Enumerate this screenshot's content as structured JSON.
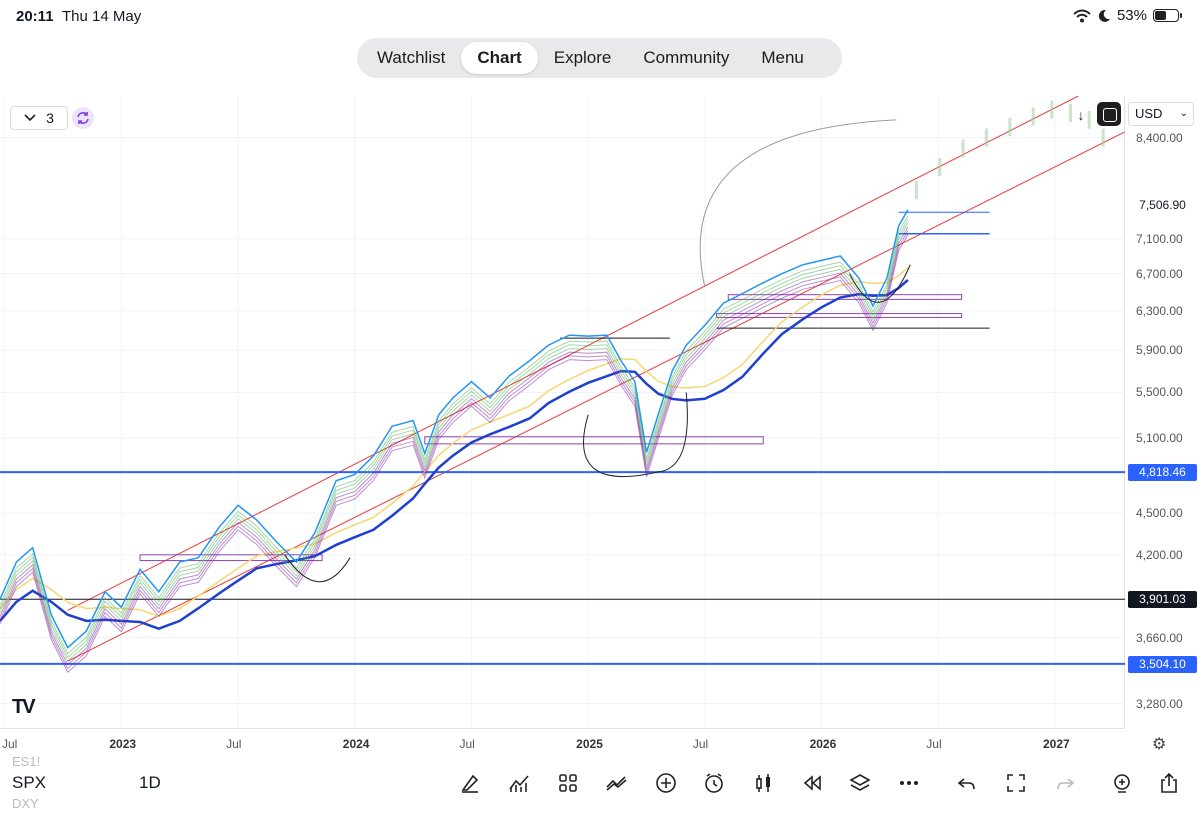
{
  "status_bar": {
    "time": "20:11",
    "date": "Thu 14 May",
    "battery": "53%",
    "battery_level": 0.53,
    "icons": [
      "wifi-icon",
      "moon-icon",
      "battery-icon"
    ]
  },
  "nav": {
    "tabs": [
      {
        "label": "Watchlist",
        "active": false
      },
      {
        "label": "Chart",
        "active": true
      },
      {
        "label": "Explore",
        "active": false
      },
      {
        "label": "Community",
        "active": false
      },
      {
        "label": "Menu",
        "active": false
      }
    ]
  },
  "chart_header": {
    "interval_count": "3",
    "currency": "USD"
  },
  "colors": {
    "trend_channel": "#e83b3b",
    "support_line": "#2962ff",
    "black_line": "#131722",
    "price_blue": "#2196f3",
    "ribbon_green": "#4caf50",
    "ribbon_purple": "#7b1fa2",
    "ma_yellow": "#f5d76e",
    "ma_blue": "#1e40d0",
    "rect_purple": "#8e44ad"
  },
  "chart_data": {
    "type": "line",
    "y_ticks": [
      "8,400.00",
      "7,100.00",
      "6,700.00",
      "6,300.00",
      "5,900.00",
      "5,500.00",
      "5,100.00",
      "4,500.00",
      "4,200.00",
      "3,660.00",
      "3,280.00"
    ],
    "price_labels": [
      {
        "text": "7,506.90",
        "value": 7506.9,
        "style": "plain"
      },
      {
        "text": "4,818.46",
        "value": 4818.46,
        "style": "blue"
      },
      {
        "text": "3,901.03",
        "value": 3901.03,
        "style": "black"
      },
      {
        "text": "3,504.10",
        "value": 3504.1,
        "style": "blue"
      }
    ],
    "x_ticks": [
      {
        "label": "Jul",
        "year": false
      },
      {
        "label": "2023",
        "year": true
      },
      {
        "label": "Jul",
        "year": false
      },
      {
        "label": "2024",
        "year": true
      },
      {
        "label": "Jul",
        "year": false
      },
      {
        "label": "2025",
        "year": true
      },
      {
        "label": "Jul",
        "year": false
      },
      {
        "label": "2026",
        "year": true
      },
      {
        "label": "Jul",
        "year": false
      },
      {
        "label": "2027",
        "year": true
      }
    ],
    "x_dates": [
      2022.5,
      2023.0,
      2023.5,
      2024.0,
      2024.5,
      2025.0,
      2025.5,
      2026.0,
      2026.5,
      2027.0
    ],
    "ylim": [
      3150,
      9000
    ],
    "scale": "log",
    "xlim": [
      2022.48,
      2027.3
    ],
    "series": [
      {
        "x": [
          2022.48,
          2022.55,
          2022.62,
          2022.7,
          2022.77,
          2022.85,
          2022.93,
          2023.0,
          2023.08,
          2023.16,
          2023.25,
          2023.33,
          2023.42,
          2023.5,
          2023.58,
          2023.66,
          2023.75,
          2023.83,
          2023.92,
          2024.0,
          2024.08,
          2024.16,
          2024.25,
          2024.3,
          2024.36,
          2024.42,
          2024.5,
          2024.58,
          2024.66,
          2024.75,
          2024.83,
          2024.92,
          2025.0,
          2025.08,
          2025.14,
          2025.2,
          2025.25,
          2025.3,
          2025.36,
          2025.42,
          2025.5,
          2025.58,
          2025.66,
          2025.75,
          2025.83,
          2025.92,
          2026.0,
          2026.08,
          2026.16,
          2026.22,
          2026.28,
          2026.33,
          2026.37
        ],
        "y": [
          3900,
          4150,
          4250,
          3800,
          3600,
          3700,
          3950,
          3850,
          4100,
          3950,
          4150,
          4180,
          4400,
          4560,
          4450,
          4300,
          4150,
          4360,
          4750,
          4800,
          4950,
          5200,
          5250,
          4970,
          5300,
          5450,
          5600,
          5450,
          5650,
          5800,
          5950,
          6050,
          6040,
          6050,
          5800,
          5600,
          4980,
          5300,
          5700,
          5950,
          6150,
          6380,
          6480,
          6600,
          6700,
          6800,
          6850,
          6900,
          6650,
          6350,
          6650,
          7250,
          7450
        ]
      }
    ],
    "annotations": [
      "trend channel",
      "support lines",
      "ribbon",
      "moving averages",
      "curved arrows",
      "projection"
    ]
  },
  "bottom_bar": {
    "symbol": "SPX",
    "symbol_above": "ES1!",
    "symbol_below": "DXY",
    "timeframe": "1D",
    "tools": [
      "draw-pen-icon",
      "indicators-icon",
      "grid-icon",
      "compare-icon",
      "add-icon",
      "alert-icon",
      "candle-type-icon",
      "replay-icon",
      "layers-icon",
      "more-icon",
      "undo-icon",
      "fullscreen-icon",
      "redo-icon",
      "add-alert-icon",
      "share-icon"
    ]
  }
}
